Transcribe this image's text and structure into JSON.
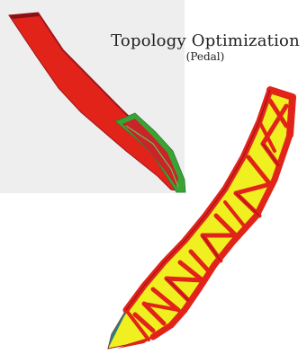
{
  "figure": {
    "title": "Topology Optimization",
    "subtitle": "(Pedal)",
    "colors": {
      "solid_red": "#e2231a",
      "dark_red": "#a0141a",
      "contact_green": "#3aa335",
      "void_yellow": "#f0f020",
      "edge_teal": "#2e7d7d",
      "panel_gray": "#eeeeee"
    }
  },
  "views": {
    "initial_design": "solid pedal design space (before optimization)",
    "optimized_design": "optimized pedal with material removed (after optimization)"
  }
}
